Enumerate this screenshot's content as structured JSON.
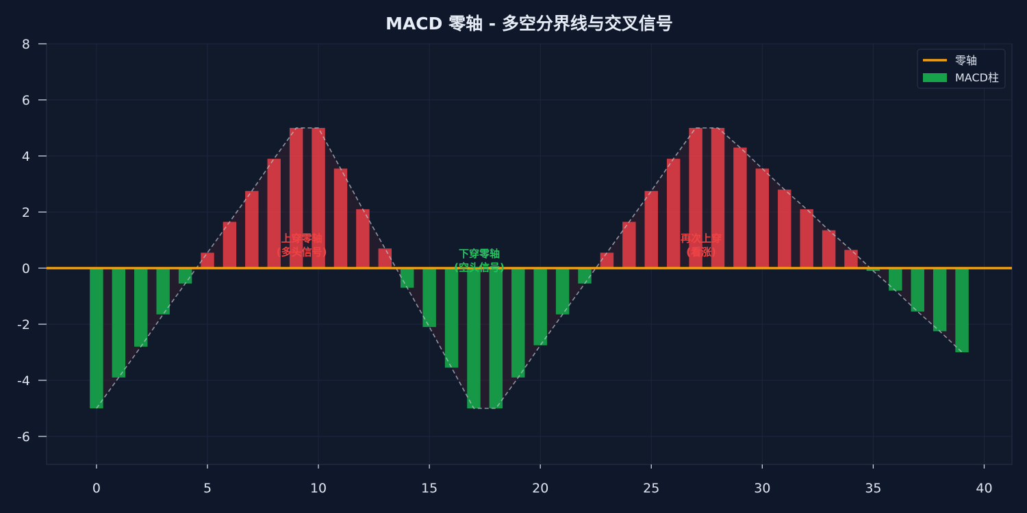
{
  "chart_data": {
    "type": "bar",
    "title": "MACD 零轴 - 多空分界线与交叉信号",
    "xlabel": "",
    "ylabel": "",
    "xlim": [
      -2.25,
      41.25
    ],
    "ylim": [
      -7,
      8
    ],
    "x_ticks": [
      0,
      5,
      10,
      15,
      20,
      25,
      30,
      35,
      40
    ],
    "y_ticks": [
      -6,
      -4,
      -2,
      0,
      2,
      4,
      6,
      8
    ],
    "grid": true,
    "legend_position": "top-right",
    "legend": [
      {
        "label": "零轴",
        "kind": "line",
        "color": "#f59e0b"
      },
      {
        "label": "MACD柱",
        "kind": "bar",
        "color": "#16a34a"
      }
    ],
    "series": [
      {
        "name": "MACD柱",
        "x": [
          0,
          1,
          2,
          3,
          4,
          5,
          6,
          7,
          8,
          9,
          10,
          11,
          12,
          13,
          14,
          15,
          16,
          17,
          18,
          19,
          20,
          21,
          22,
          23,
          24,
          25,
          26,
          27,
          28,
          29,
          30,
          31,
          32,
          33,
          34,
          35,
          36,
          37,
          38,
          39
        ],
        "values": [
          -5.0,
          -3.9,
          -2.8,
          -1.65,
          -0.55,
          0.55,
          1.65,
          2.75,
          3.9,
          5.0,
          5.0,
          3.55,
          2.1,
          0.7,
          -0.7,
          -2.1,
          -3.55,
          -5.0,
          -5.0,
          -3.9,
          -2.75,
          -1.65,
          -0.55,
          0.55,
          1.65,
          2.75,
          3.9,
          5.0,
          5.0,
          4.3,
          3.55,
          2.8,
          2.1,
          1.35,
          0.65,
          -0.1,
          -0.8,
          -1.55,
          -2.25,
          -3.0
        ]
      }
    ],
    "zero_line": {
      "label": "零轴",
      "value": 0
    },
    "positive_color": "#dc3c45",
    "negative_color": "#16a34a",
    "envelope_color": "#b8c0cc",
    "annotations": [
      {
        "x": 9,
        "y": 0.4,
        "text_line1": "上穿零轴",
        "text_line2": "(多头信号)",
        "color": "#ef4444"
      },
      {
        "x": 17,
        "y": -0.15,
        "text_line1": "下穿零轴",
        "text_line2": "(空头信号)",
        "color": "#22c55e"
      },
      {
        "x": 27,
        "y": 0.4,
        "text_line1": "再次上穿",
        "text_line2": "(看涨)",
        "color": "#ef4444"
      }
    ]
  }
}
